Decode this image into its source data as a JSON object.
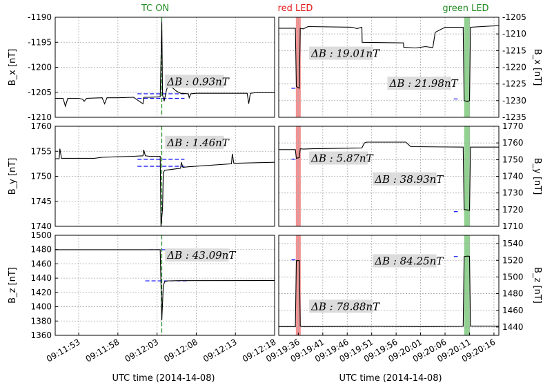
{
  "figure": {
    "top_labels": [
      {
        "key": "tc_on",
        "text": "TC ON",
        "color": "#228b22"
      },
      {
        "key": "red_led",
        "text": "red LED",
        "color": "#e41a1c"
      },
      {
        "key": "green_led",
        "text": "green LED",
        "color": "#228b22"
      }
    ],
    "xlabels": [
      "UTC time (2014-14-08)",
      "UTC time (2014-14-08)"
    ],
    "colors": {
      "trace": "#000000",
      "baseline": "#0000ff",
      "tc_line": "#228b22",
      "red_band": "#f08080",
      "green_band": "#7fc97f",
      "annotation_bg": "#dcdcdc"
    }
  },
  "chart_data": [
    {
      "id": "left-bx",
      "type": "line",
      "grid": true,
      "ylabel": "B_x [nT]",
      "ylim": [
        -1210,
        -1190
      ],
      "yticks": [
        -1210,
        -1205,
        -1200,
        -1195,
        -1190
      ],
      "xlim": [
        0,
        28
      ],
      "xticks": [
        3,
        8,
        13,
        18,
        23,
        28
      ],
      "xticklabels": [
        "09:11:53",
        "09:11:58",
        "09:12:03",
        "09:12:08",
        "09:12:13",
        "09:12:18"
      ],
      "ytick_side": "left",
      "marker_x": 13.6,
      "annotations": [
        {
          "text": "ΔB : 0.93nT",
          "x": 14.2,
          "y": -1203.3
        }
      ],
      "baselines": [
        {
          "x0": 10.5,
          "x1": 16.5,
          "y": -1205.3
        },
        {
          "x0": 10.5,
          "x1": 16.5,
          "y": -1206.2
        }
      ],
      "x": [
        0,
        1,
        1.3,
        1.6,
        3,
        3.5,
        3.7,
        4,
        6,
        6.3,
        6.6,
        8,
        10,
        11.2,
        11.3,
        12,
        13.4,
        13.6,
        13.7,
        13.9,
        14.2,
        14.5,
        15.5,
        16,
        17,
        17.1,
        17.3,
        18,
        19,
        23,
        24.5,
        24.7,
        24.9,
        25.5,
        28
      ],
      "values": [
        -1206.2,
        -1206.2,
        -1207.8,
        -1206.2,
        -1206.2,
        -1206.4,
        -1206.8,
        -1206.2,
        -1206.1,
        -1207.3,
        -1206.1,
        -1206.1,
        -1206.0,
        -1207.3,
        -1206.0,
        -1206.0,
        -1205.9,
        -1190.8,
        -1205.5,
        -1206.8,
        -1204.5,
        -1203.5,
        -1204.8,
        -1205.2,
        -1205.3,
        -1206.1,
        -1205.3,
        -1205.2,
        -1205.2,
        -1205.2,
        -1205.2,
        -1207.3,
        -1205.2,
        -1205.1,
        -1205.1
      ]
    },
    {
      "id": "right-bx",
      "type": "line",
      "grid": true,
      "ylabel": "B_x [nT]",
      "ylim": [
        -1235,
        -1205
      ],
      "yticks": [
        -1235,
        -1230,
        -1225,
        -1220,
        -1215,
        -1210,
        -1205
      ],
      "xlim": [
        0,
        45
      ],
      "xticks": [
        4,
        9,
        14,
        19,
        24,
        29,
        34,
        39,
        44
      ],
      "xticklabels": [
        "09:19:36",
        "09:19:41",
        "09:19:46",
        "09:19:51",
        "09:19:56",
        "09:20:01",
        "09:20:06",
        "09:20:11",
        "09:20:16"
      ],
      "ytick_side": "right",
      "bands": [
        {
          "x0": 3.5,
          "x1": 4.5,
          "color": "red"
        },
        {
          "x0": 37.9,
          "x1": 39.1,
          "color": "green"
        }
      ],
      "annotations": [
        {
          "text": "ΔB : 19.01nT",
          "x": 6.5,
          "y": -1216.5
        },
        {
          "text": "ΔB : 21.98nT",
          "x": 22.5,
          "y": -1225.5
        }
      ],
      "baselines": [
        {
          "x0": 2.6,
          "x1": 3.4,
          "y": -1226.3
        },
        {
          "x0": 35.8,
          "x1": 36.6,
          "y": -1229.5
        }
      ],
      "x": [
        0,
        3.4,
        3.6,
        4.2,
        4.4,
        5,
        6,
        15,
        16,
        17,
        17.05,
        25.5,
        25.55,
        28,
        30,
        31.5,
        32,
        34,
        37.7,
        37.9,
        38.6,
        39.0,
        39.2,
        45
      ],
      "values": [
        -1208.3,
        -1208.3,
        -1225.8,
        -1226.3,
        -1208.3,
        -1208.5,
        -1207.8,
        -1208.0,
        -1208.4,
        -1208.0,
        -1212.5,
        -1212.7,
        -1214.0,
        -1214.2,
        -1213.8,
        -1214.1,
        -1209.5,
        -1208.0,
        -1208.0,
        -1230.0,
        -1230.3,
        -1230.0,
        -1208.0,
        -1207.5
      ]
    },
    {
      "id": "left-by",
      "type": "line",
      "grid": true,
      "ylabel": "B_y [nT]",
      "ylim": [
        1740,
        1760
      ],
      "yticks": [
        1740,
        1745,
        1750,
        1755,
        1760
      ],
      "xlim": [
        0,
        28
      ],
      "xticks": [
        3,
        8,
        13,
        18,
        23,
        28
      ],
      "xticklabels": [
        "09:11:53",
        "09:11:58",
        "09:12:03",
        "09:12:08",
        "09:12:13",
        "09:12:18"
      ],
      "ytick_side": "left",
      "marker_x": 13.6,
      "annotations": [
        {
          "text": "ΔB : 1.46nT",
          "x": 14.2,
          "y": 1756.3
        }
      ],
      "baselines": [
        {
          "x0": 10.5,
          "x1": 16.5,
          "y": 1753.4
        },
        {
          "x0": 10.5,
          "x1": 16.5,
          "y": 1752.0
        }
      ],
      "x": [
        0,
        0.5,
        0.6,
        0.8,
        1.5,
        5,
        6,
        8,
        10,
        11.2,
        11.3,
        11.5,
        12,
        13.4,
        13.5,
        13.7,
        13.8,
        14.0,
        15,
        16.0,
        16.1,
        16.3,
        17,
        22.5,
        22.6,
        22.8,
        28
      ],
      "values": [
        1753.5,
        1753.5,
        1755.5,
        1753.6,
        1753.6,
        1753.6,
        1753.8,
        1753.9,
        1754.0,
        1754.1,
        1755.3,
        1754.1,
        1754.0,
        1754.0,
        1740.0,
        1743.5,
        1750.8,
        1751.2,
        1751.4,
        1751.6,
        1752.8,
        1751.8,
        1751.9,
        1752.5,
        1754.5,
        1752.6,
        1752.8
      ]
    },
    {
      "id": "right-by",
      "type": "line",
      "grid": true,
      "ylabel": "B_y [nT]",
      "ylim": [
        1710,
        1770
      ],
      "yticks": [
        1710,
        1720,
        1730,
        1740,
        1750,
        1760,
        1770
      ],
      "xlim": [
        0,
        45
      ],
      "xticks": [
        4,
        9,
        14,
        19,
        24,
        29,
        34,
        39,
        44
      ],
      "xticklabels": [
        "09:19:36",
        "09:19:41",
        "09:19:46",
        "09:19:51",
        "09:19:56",
        "09:20:01",
        "09:20:06",
        "09:20:11",
        "09:20:16"
      ],
      "ytick_side": "right",
      "bands": [
        {
          "x0": 3.5,
          "x1": 4.5,
          "color": "red"
        },
        {
          "x0": 37.9,
          "x1": 39.1,
          "color": "green"
        }
      ],
      "annotations": [
        {
          "text": "ΔB : 5.87nT",
          "x": 6.5,
          "y": 1749.5
        },
        {
          "text": "ΔB : 38.93nT",
          "x": 19.5,
          "y": 1737.0
        }
      ],
      "baselines": [
        {
          "x0": 2.6,
          "x1": 3.4,
          "y": 1750.3
        },
        {
          "x0": 35.8,
          "x1": 36.6,
          "y": 1718.8
        }
      ],
      "x": [
        0,
        3.4,
        3.6,
        4.2,
        4.4,
        5,
        7,
        17,
        17.5,
        18,
        26,
        26.5,
        27,
        37.7,
        37.9,
        38.6,
        39.0,
        39.2,
        45
      ],
      "values": [
        1756.0,
        1756.0,
        1750.8,
        1751.2,
        1756.5,
        1756.3,
        1756.5,
        1757.0,
        1760.0,
        1760.5,
        1760.5,
        1759.0,
        1757.8,
        1757.5,
        1720.0,
        1719.8,
        1719.5,
        1757.5,
        1757.5
      ]
    },
    {
      "id": "left-bz",
      "type": "line",
      "grid": true,
      "ylabel": "B_z [nT]",
      "ylim": [
        1360,
        1500
      ],
      "yticks": [
        1360,
        1380,
        1400,
        1420,
        1440,
        1460,
        1480,
        1500
      ],
      "xlim": [
        0,
        28
      ],
      "xticks": [
        3,
        8,
        13,
        18,
        23,
        28
      ],
      "xticklabels": [
        "09:11:53",
        "09:11:58",
        "09:12:03",
        "09:12:08",
        "09:12:13",
        "09:12:18"
      ],
      "ytick_side": "left",
      "marker_x": 13.6,
      "annotations": [
        {
          "text": "ΔB : 43.09nT",
          "x": 14.2,
          "y": 1469
        }
      ],
      "baselines": [
        {
          "x0": 12,
          "x1": 17,
          "y": 1479.8
        },
        {
          "x0": 11.5,
          "x1": 17,
          "y": 1436.2
        }
      ],
      "x": [
        0,
        13.4,
        13.6,
        13.7,
        13.8,
        14.0,
        14.5,
        16,
        28
      ],
      "values": [
        1479.8,
        1479.8,
        1381,
        1405,
        1430,
        1435.5,
        1436.3,
        1436.6,
        1436.8
      ]
    },
    {
      "id": "right-bz",
      "type": "line",
      "grid": true,
      "ylabel": "B_z [nT]",
      "ylim": [
        1430,
        1550
      ],
      "yticks": [
        1440,
        1460,
        1480,
        1500,
        1520,
        1540
      ],
      "xlim": [
        0,
        45
      ],
      "xticks": [
        4,
        9,
        14,
        19,
        24,
        29,
        34,
        39,
        44
      ],
      "xticklabels": [
        "09:19:36",
        "09:19:41",
        "09:19:46",
        "09:19:51",
        "09:19:56",
        "09:20:01",
        "09:20:06",
        "09:20:11",
        "09:20:16"
      ],
      "ytick_side": "right",
      "bands": [
        {
          "x0": 3.5,
          "x1": 4.5,
          "color": "red"
        },
        {
          "x0": 37.9,
          "x1": 39.1,
          "color": "green"
        }
      ],
      "annotations": [
        {
          "text": "ΔB : 78.88nT",
          "x": 6.5,
          "y": 1462
        },
        {
          "text": "ΔB : 84.25nT",
          "x": 19.5,
          "y": 1516.5
        }
      ],
      "baselines": [
        {
          "x0": 2.6,
          "x1": 3.4,
          "y": 1520.5
        },
        {
          "x0": 35.8,
          "x1": 36.6,
          "y": 1524.5
        }
      ],
      "x": [
        0,
        3.4,
        3.6,
        4.2,
        4.4,
        5,
        20,
        30,
        37.7,
        37.9,
        38.6,
        39.0,
        39.2,
        45
      ],
      "values": [
        1440.5,
        1440.5,
        1519.5,
        1519.8,
        1441,
        1440.5,
        1440.8,
        1440.5,
        1440.8,
        1524.5,
        1525.0,
        1524.8,
        1441,
        1441
      ]
    }
  ]
}
